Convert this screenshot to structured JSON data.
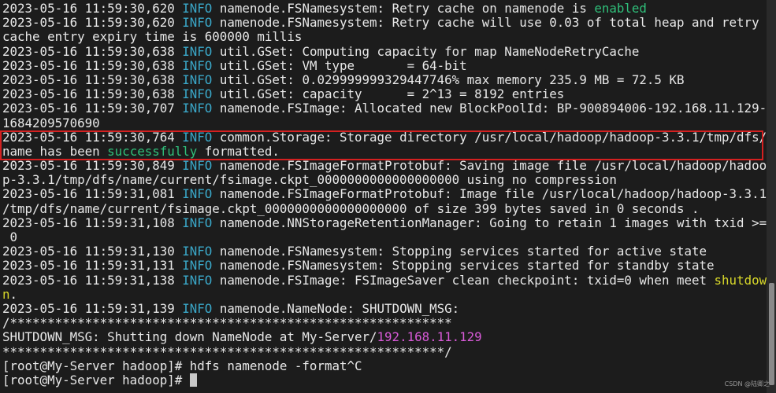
{
  "colors": {
    "background": "#1c1c1c",
    "text": "#e8e8e8",
    "info": "#3aa7c8",
    "green": "#2fc07a",
    "yellow": "#d8d82a",
    "magenta": "#d85ad8",
    "highlight_box": "#d42020"
  },
  "terminal": {
    "lines": [
      [
        {
          "t": "2023-05-16 11:59:30,620 "
        },
        {
          "t": "INFO",
          "c": "info"
        },
        {
          "t": " namenode.FSNamesystem: Retry cache on namenode is "
        },
        {
          "t": "enabled",
          "c": "green"
        }
      ],
      [
        {
          "t": "2023-05-16 11:59:30,620 "
        },
        {
          "t": "INFO",
          "c": "info"
        },
        {
          "t": " namenode.FSNamesystem: Retry cache will use 0.03 of total heap and retry"
        }
      ],
      [
        {
          "t": "cache entry expiry time is 600000 millis"
        }
      ],
      [
        {
          "t": "2023-05-16 11:59:30,638 "
        },
        {
          "t": "INFO",
          "c": "info"
        },
        {
          "t": " util.GSet: Computing capacity for map NameNodeRetryCache"
        }
      ],
      [
        {
          "t": "2023-05-16 11:59:30,638 "
        },
        {
          "t": "INFO",
          "c": "info"
        },
        {
          "t": " util.GSet: VM type       = 64-bit"
        }
      ],
      [
        {
          "t": "2023-05-16 11:59:30,638 "
        },
        {
          "t": "INFO",
          "c": "info"
        },
        {
          "t": " util.GSet: 0.029999999329447746% max memory 235.9 MB = 72.5 KB"
        }
      ],
      [
        {
          "t": "2023-05-16 11:59:30,638 "
        },
        {
          "t": "INFO",
          "c": "info"
        },
        {
          "t": " util.GSet: capacity      = 2^13 = 8192 entries"
        }
      ],
      [
        {
          "t": "2023-05-16 11:59:30,707 "
        },
        {
          "t": "INFO",
          "c": "info"
        },
        {
          "t": " namenode.FSImage: Allocated new BlockPoolId: BP-900894006-192.168.11.129-"
        }
      ],
      [
        {
          "t": "1684209570690"
        }
      ],
      [
        {
          "t": "2023-05-16 11:59:30,764 "
        },
        {
          "t": "INFO",
          "c": "info"
        },
        {
          "t": " common.Storage: Storage directory /usr/local/hadoop/hadoop-3.3.1/tmp/dfs/"
        }
      ],
      [
        {
          "t": "name has been "
        },
        {
          "t": "successfully",
          "c": "green"
        },
        {
          "t": " formatted."
        }
      ],
      [
        {
          "t": "2023-05-16 11:59:30,849 "
        },
        {
          "t": "INFO",
          "c": "info"
        },
        {
          "t": " namenode.FSImageFormatProtobuf: Saving image file /usr/local/hadoop/hadoo"
        }
      ],
      [
        {
          "t": "p-3.3.1/tmp/dfs/name/current/fsimage.ckpt_0000000000000000000 using no compression"
        }
      ],
      [
        {
          "t": "2023-05-16 11:59:31,081 "
        },
        {
          "t": "INFO",
          "c": "info"
        },
        {
          "t": " namenode.FSImageFormatProtobuf: Image file /usr/local/hadoop/hadoop-3.3.1"
        }
      ],
      [
        {
          "t": "/tmp/dfs/name/current/fsimage.ckpt_0000000000000000000 of size 399 bytes saved in 0 seconds ."
        }
      ],
      [
        {
          "t": "2023-05-16 11:59:31,108 "
        },
        {
          "t": "INFO",
          "c": "info"
        },
        {
          "t": " namenode.NNStorageRetentionManager: Going to retain 1 images with txid >="
        }
      ],
      [
        {
          "t": " 0"
        }
      ],
      [
        {
          "t": "2023-05-16 11:59:31,130 "
        },
        {
          "t": "INFO",
          "c": "info"
        },
        {
          "t": " namenode.FSNamesystem: Stopping services started for active state"
        }
      ],
      [
        {
          "t": "2023-05-16 11:59:31,131 "
        },
        {
          "t": "INFO",
          "c": "info"
        },
        {
          "t": " namenode.FSNamesystem: Stopping services started for standby state"
        }
      ],
      [
        {
          "t": "2023-05-16 11:59:31,138 "
        },
        {
          "t": "INFO",
          "c": "info"
        },
        {
          "t": " namenode.FSImage: FSImageSaver clean checkpoint: txid=0 when meet "
        },
        {
          "t": "shutdow",
          "c": "yellow"
        }
      ],
      [
        {
          "t": "n",
          "c": "yellow"
        },
        {
          "t": "."
        }
      ],
      [
        {
          "t": "2023-05-16 11:59:31,139 "
        },
        {
          "t": "INFO",
          "c": "info"
        },
        {
          "t": " namenode.NameNode: SHUTDOWN_MSG: "
        }
      ],
      [
        {
          "t": "/***********************************************************"
        }
      ],
      [
        {
          "t": "SHUTDOWN_MSG: Shutting down NameNode at My-Server/"
        },
        {
          "t": "192.168.11.129",
          "c": "magenta"
        }
      ],
      [
        {
          "t": "***********************************************************/"
        }
      ],
      [
        {
          "t": "[root@My-Server hadoop]# hdfs namenode -format^C"
        }
      ],
      [
        {
          "t": "[root@My-Server hadoop]# "
        }
      ]
    ]
  },
  "watermark": "CSDN @陆卿之"
}
